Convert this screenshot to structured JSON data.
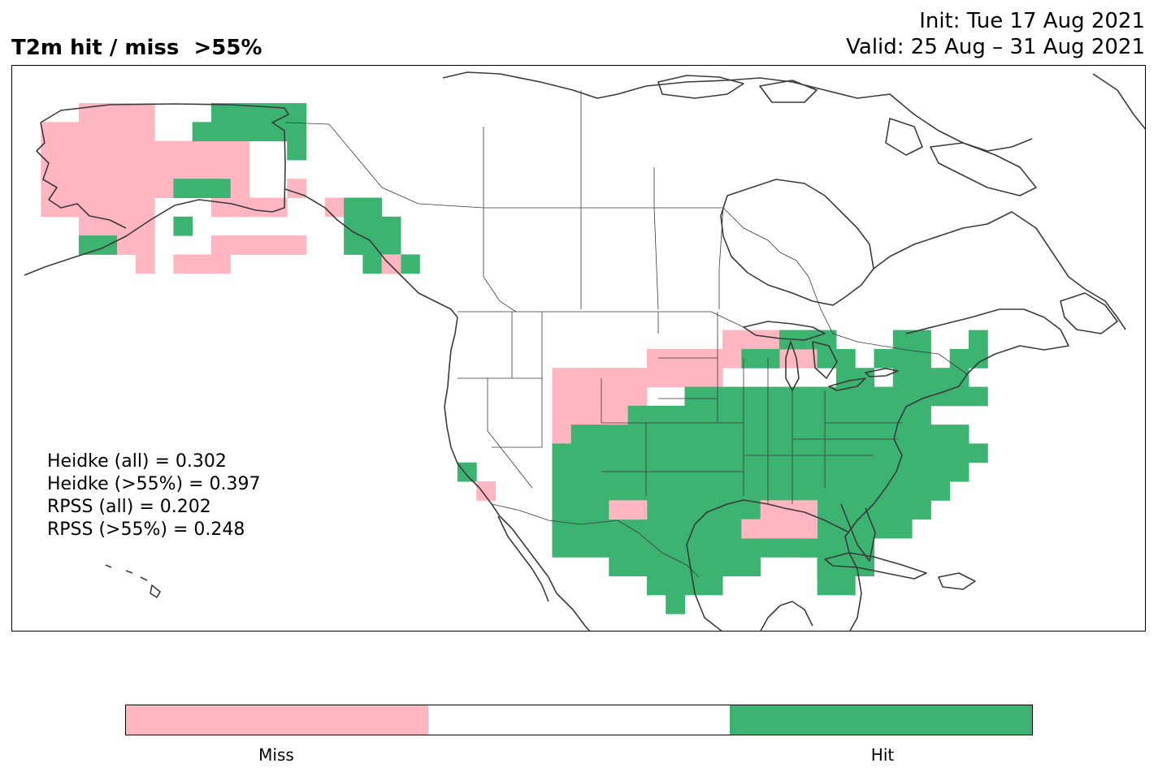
{
  "title": "T2m hit / miss  >55%",
  "init": "Init: Tue 17 Aug 2021",
  "valid": "Valid: 25 Aug – 31 Aug 2021",
  "stats": [
    "Heidke (all) = 0.302",
    "Heidke (>55%) = 0.397",
    "RPSS (all) = 0.202",
    "RPSS (>55%) = 0.248"
  ],
  "colors": {
    "miss": "#ffb6c1",
    "neutral": "#ffffff",
    "hit": "#3cb371",
    "coast": "#3a3a3a"
  },
  "legend": {
    "miss_label": "Miss",
    "hit_label": "Hit"
  }
}
